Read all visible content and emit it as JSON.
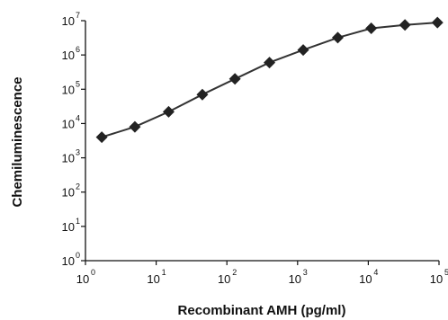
{
  "chart_data": {
    "type": "line",
    "title": "",
    "xlabel": "Recombinant AMH (pg/ml)",
    "ylabel": "Chemiluminescence",
    "x_scale": "log",
    "y_scale": "log",
    "xlim": [
      1,
      100000
    ],
    "ylim": [
      1,
      10000000
    ],
    "x_ticks": [
      {
        "base": "10",
        "exp": "0"
      },
      {
        "base": "10",
        "exp": "1"
      },
      {
        "base": "10",
        "exp": "2"
      },
      {
        "base": "10",
        "exp": "3"
      },
      {
        "base": "10",
        "exp": "4"
      },
      {
        "base": "10",
        "exp": "5"
      }
    ],
    "y_ticks": [
      {
        "base": "10",
        "exp": "0"
      },
      {
        "base": "10",
        "exp": "1"
      },
      {
        "base": "10",
        "exp": "2"
      },
      {
        "base": "10",
        "exp": "3"
      },
      {
        "base": "10",
        "exp": "4"
      },
      {
        "base": "10",
        "exp": "5"
      },
      {
        "base": "10",
        "exp": "6"
      },
      {
        "base": "10",
        "exp": "7"
      }
    ],
    "grid": false,
    "legend": "none",
    "marker": "diamond",
    "line_color": "#333333",
    "marker_color": "#222222",
    "series": [
      {
        "x": [
          1.7,
          5,
          15,
          45,
          130,
          400,
          1200,
          3700,
          11000,
          33000,
          95000
        ],
        "y": [
          4000,
          8000,
          22000,
          70000,
          200000,
          600000,
          1400000,
          3200000,
          6000000,
          7500000,
          8800000
        ]
      }
    ]
  }
}
